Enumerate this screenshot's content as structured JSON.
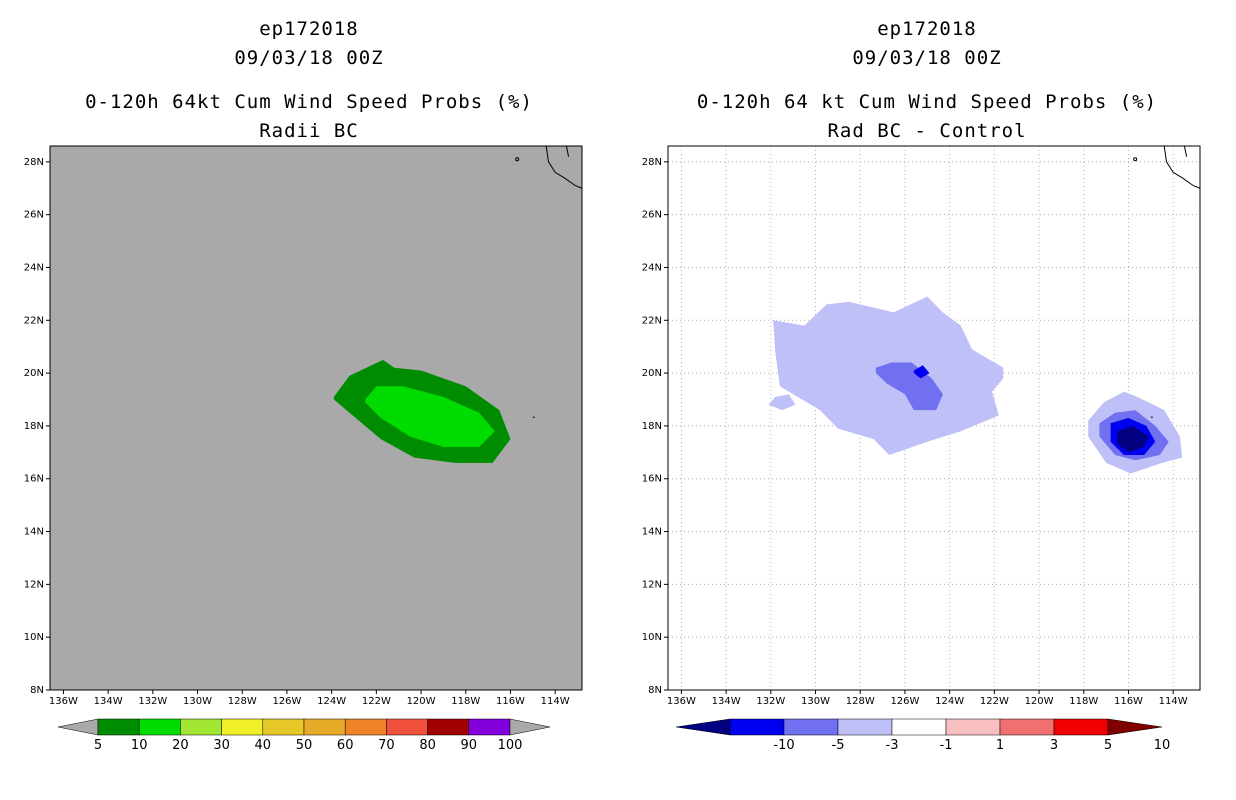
{
  "colors": {
    "ocean_gray": "#a9a9a9",
    "prob": [
      "#008c00",
      "#00dc00",
      "#a0e632",
      "#f0f028",
      "#e6c828",
      "#e6aa28",
      "#f08228",
      "#f0503c",
      "#a00000",
      "#8200dc"
    ],
    "diff": [
      "#000080",
      "#0000f0",
      "#7070f0",
      "#c0c0f8",
      "#ffffff",
      "#f8c0c0",
      "#f07070",
      "#f00000",
      "#800000"
    ]
  },
  "left": {
    "title_line1": "ep172018",
    "title_line2": "09/03/18 00Z",
    "title_line3": "0-120h 64kt Cum Wind Speed Probs (%)",
    "title_line4": "Radii BC",
    "colorbar_labels": [
      "5",
      "10",
      "20",
      "30",
      "40",
      "50",
      "60",
      "70",
      "80",
      "90",
      "100"
    ]
  },
  "right": {
    "title_line1": "ep172018",
    "title_line2": "09/03/18 00Z",
    "title_line3": "0-120h 64 kt Cum Wind Speed Probs (%)",
    "title_line4": "Rad BC - Control",
    "colorbar_labels": [
      "-10",
      "-5",
      "-3",
      "-1",
      "1",
      "3",
      "5",
      "10"
    ]
  },
  "chart_data": [
    {
      "type": "heatmap",
      "title": "0-120h 64kt Cum Wind Speed Probs (%) Radii BC",
      "storm": "ep172018",
      "valid_time": "09/03/18 00Z",
      "x_tick_labels": [
        "136W",
        "134W",
        "132W",
        "130W",
        "128W",
        "126W",
        "124W",
        "122W",
        "120W",
        "118W",
        "116W",
        "114W"
      ],
      "y_tick_labels": [
        "8N",
        "10N",
        "12N",
        "14N",
        "16N",
        "18N",
        "20N",
        "22N",
        "24N",
        "26N",
        "28N"
      ],
      "xlim": [
        -136.6,
        -112.8
      ],
      "ylim": [
        8,
        28.6
      ],
      "grid": false,
      "contour_levels": [
        5,
        10,
        20,
        30,
        40,
        50,
        60,
        70,
        80,
        90,
        100
      ],
      "regions": [
        {
          "name": "5-10%",
          "level": 5,
          "points": [
            [
              -123.9,
              19.1
            ],
            [
              -123.2,
              19.9
            ],
            [
              -121.7,
              20.5
            ],
            [
              -121.2,
              20.2
            ],
            [
              -120.0,
              20.1
            ],
            [
              -118.0,
              19.5
            ],
            [
              -116.5,
              18.6
            ],
            [
              -116.0,
              17.5
            ],
            [
              -116.8,
              16.6
            ],
            [
              -118.5,
              16.6
            ],
            [
              -120.3,
              16.8
            ],
            [
              -121.8,
              17.5
            ],
            [
              -123.2,
              18.5
            ],
            [
              -123.9,
              19.0
            ]
          ]
        },
        {
          "name": "10-20%",
          "level": 10,
          "points": [
            [
              -122.5,
              19.0
            ],
            [
              -122.0,
              19.5
            ],
            [
              -120.8,
              19.5
            ],
            [
              -119.0,
              19.1
            ],
            [
              -117.4,
              18.5
            ],
            [
              -116.7,
              17.8
            ],
            [
              -117.4,
              17.2
            ],
            [
              -119.0,
              17.2
            ],
            [
              -120.5,
              17.6
            ],
            [
              -121.8,
              18.3
            ],
            [
              -122.5,
              18.9
            ]
          ]
        }
      ]
    },
    {
      "type": "heatmap",
      "title": "0-120h 64 kt Cum Wind Speed Probs (%) Rad BC - Control",
      "storm": "ep172018",
      "valid_time": "09/03/18 00Z",
      "x_tick_labels": [
        "136W",
        "134W",
        "132W",
        "130W",
        "128W",
        "126W",
        "124W",
        "122W",
        "120W",
        "118W",
        "116W",
        "114W"
      ],
      "y_tick_labels": [
        "8N",
        "10N",
        "12N",
        "14N",
        "16N",
        "18N",
        "20N",
        "22N",
        "24N",
        "26N",
        "28N"
      ],
      "xlim": [
        -136.6,
        -112.8
      ],
      "ylim": [
        8,
        28.6
      ],
      "grid": true,
      "contour_levels": [
        -10,
        -5,
        -3,
        -1,
        1,
        3,
        5,
        10
      ],
      "regions": [
        {
          "name": "-3 to -1",
          "level": -3,
          "points": [
            [
              -131.9,
              22.0
            ],
            [
              -130.5,
              21.8
            ],
            [
              -129.5,
              22.6
            ],
            [
              -128.5,
              22.7
            ],
            [
              -126.5,
              22.3
            ],
            [
              -125.0,
              22.9
            ],
            [
              -124.3,
              22.3
            ],
            [
              -123.5,
              21.8
            ],
            [
              -123.0,
              20.9
            ],
            [
              -121.6,
              20.2
            ],
            [
              -121.6,
              19.8
            ],
            [
              -122.1,
              19.3
            ],
            [
              -121.8,
              18.4
            ],
            [
              -123.5,
              17.8
            ],
            [
              -125.0,
              17.4
            ],
            [
              -126.7,
              16.9
            ],
            [
              -127.4,
              17.5
            ],
            [
              -129.0,
              17.9
            ],
            [
              -129.8,
              18.6
            ],
            [
              -131.6,
              19.5
            ],
            [
              -131.8,
              20.8
            ],
            [
              -131.9,
              22.0
            ]
          ]
        },
        {
          "name": "-3 to -1 patch",
          "level": -3,
          "points": [
            [
              -132.1,
              18.8
            ],
            [
              -131.5,
              18.6
            ],
            [
              -130.9,
              18.8
            ],
            [
              -131.2,
              19.2
            ],
            [
              -131.8,
              19.1
            ],
            [
              -132.1,
              18.8
            ]
          ]
        },
        {
          "name": "-3 to -1 east",
          "level": -3,
          "points": [
            [
              -117.8,
              18.2
            ],
            [
              -117.1,
              18.9
            ],
            [
              -116.2,
              19.3
            ],
            [
              -115.6,
              19.1
            ],
            [
              -114.4,
              18.6
            ],
            [
              -113.7,
              17.6
            ],
            [
              -113.6,
              16.8
            ],
            [
              -114.5,
              16.6
            ],
            [
              -115.9,
              16.2
            ],
            [
              -117.0,
              16.6
            ],
            [
              -117.8,
              17.6
            ],
            [
              -117.8,
              18.2
            ]
          ]
        },
        {
          "name": "-5 to -3",
          "level": -5,
          "points": [
            [
              -127.3,
              20.2
            ],
            [
              -126.6,
              20.4
            ],
            [
              -125.7,
              20.4
            ],
            [
              -124.8,
              19.8
            ],
            [
              -124.3,
              19.2
            ],
            [
              -124.6,
              18.6
            ],
            [
              -125.6,
              18.6
            ],
            [
              -126.0,
              19.2
            ],
            [
              -126.8,
              19.6
            ],
            [
              -127.3,
              20.0
            ]
          ]
        },
        {
          "name": "-5 to -3 east",
          "level": -5,
          "points": [
            [
              -117.3,
              18.1
            ],
            [
              -116.6,
              18.5
            ],
            [
              -115.7,
              18.6
            ],
            [
              -114.8,
              18.0
            ],
            [
              -114.2,
              17.4
            ],
            [
              -114.6,
              16.9
            ],
            [
              -115.7,
              16.7
            ],
            [
              -116.6,
              16.9
            ],
            [
              -117.3,
              17.6
            ],
            [
              -117.3,
              18.1
            ]
          ]
        },
        {
          "name": "-10 to -5",
          "level": -10,
          "points": [
            [
              -125.6,
              20.1
            ],
            [
              -125.2,
              20.3
            ],
            [
              -124.9,
              20.0
            ],
            [
              -125.3,
              19.8
            ],
            [
              -125.6,
              20.0
            ]
          ]
        },
        {
          "name": "-10 to -5 east",
          "level": -10,
          "points": [
            [
              -116.8,
              18.1
            ],
            [
              -116.0,
              18.3
            ],
            [
              -115.2,
              18.0
            ],
            [
              -114.8,
              17.4
            ],
            [
              -115.3,
              16.9
            ],
            [
              -116.2,
              16.9
            ],
            [
              -116.8,
              17.4
            ],
            [
              -116.8,
              18.0
            ]
          ]
        },
        {
          "name": "< -10",
          "level": -11,
          "points": [
            [
              -116.5,
              17.8
            ],
            [
              -115.8,
              18.0
            ],
            [
              -115.1,
              17.6
            ],
            [
              -115.3,
              17.2
            ],
            [
              -116.0,
              17.0
            ],
            [
              -116.5,
              17.3
            ],
            [
              -116.5,
              17.8
            ]
          ]
        }
      ]
    }
  ]
}
